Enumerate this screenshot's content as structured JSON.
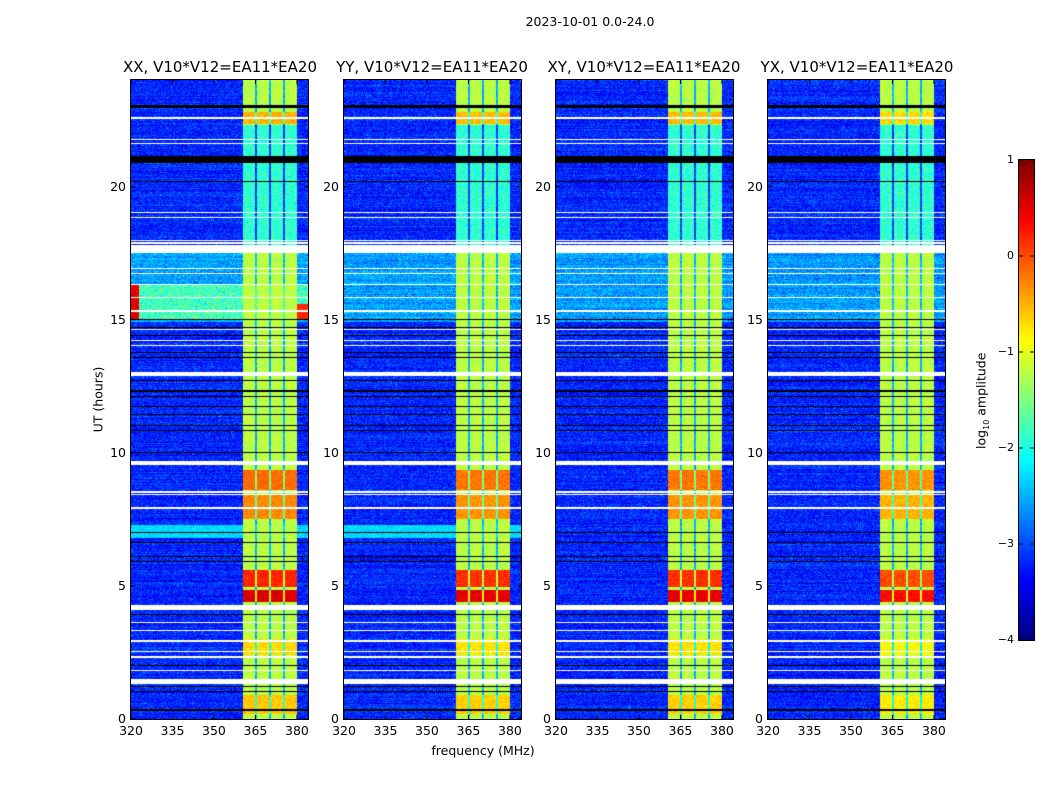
{
  "chart_data": {
    "type": "heatmap",
    "title": "2023-10-01 0.0-24.0",
    "xlabel": "frequency (MHz)",
    "ylabel": "UT (hours)",
    "xlim": [
      320,
      384
    ],
    "ylim": [
      0,
      24
    ],
    "xticks": [
      320,
      335,
      350,
      365,
      380
    ],
    "xtick_labels": [
      "320",
      "335",
      "350",
      "365",
      "380"
    ],
    "yticks": [
      0,
      5,
      10,
      15,
      20
    ],
    "ytick_labels": [
      "0",
      "5",
      "10",
      "15",
      "20"
    ],
    "panels": [
      {
        "title": "XX, V10*V12=EA11*EA20",
        "burst_offset": 0.0,
        "rfi": true,
        "light_rows": true
      },
      {
        "title": "YY, V10*V12=EA11*EA20",
        "burst_offset": -0.05,
        "rfi": false,
        "light_rows": true
      },
      {
        "title": "XY, V10*V12=EA11*EA20",
        "burst_offset": -0.05,
        "rfi": false,
        "light_rows": false
      },
      {
        "title": "YX, V10*V12=EA11*EA20",
        "burst_offset": -0.2,
        "rfi": false,
        "light_rows": false
      }
    ],
    "colorbar": {
      "label_prefix": "log",
      "label_sub": "10",
      "label_suffix": " amplitude",
      "colormap": "jet",
      "range": [
        -4,
        1
      ],
      "ticks": [
        1,
        0,
        -1,
        -2,
        -3,
        -4
      ],
      "tick_labels": [
        "1",
        "0",
        "−1",
        "−2",
        "−3",
        "−4"
      ]
    },
    "background_log_amplitude": -3.2,
    "signal_band_mhz": [
      360.5,
      380.0
    ],
    "signal_band_log_amplitude": -1.2,
    "subband_gaps_mhz": [
      365.2,
      370.3,
      375.4
    ],
    "bursts_hours": [
      {
        "t": [
          4.4,
          4.85
        ],
        "level": 0.55
      },
      {
        "t": [
          4.95,
          5.6
        ],
        "level": 0.2
      },
      {
        "t": [
          7.5,
          8.4
        ],
        "level": -0.3
      },
      {
        "t": [
          8.6,
          9.35
        ],
        "level": -0.15
      },
      {
        "t": [
          22.35,
          22.8
        ],
        "level": -0.5
      },
      {
        "t": [
          2.4,
          3.0
        ],
        "level": -0.7
      },
      {
        "t": [
          0.2,
          0.9
        ],
        "level": -0.6
      }
    ],
    "flagged_hours": [
      [
        17.5,
        17.8
      ],
      [
        12.9,
        13.05
      ],
      [
        9.55,
        9.7
      ],
      [
        4.1,
        4.3
      ],
      [
        1.3,
        1.5
      ],
      [
        22.55,
        22.6
      ],
      [
        21.75,
        21.8
      ],
      [
        21.6,
        21.65
      ],
      [
        19.0,
        19.05
      ],
      [
        18.8,
        18.85
      ],
      [
        17.95,
        18.0
      ],
      [
        17.85,
        17.9
      ],
      [
        16.9,
        16.95
      ],
      [
        16.7,
        16.75
      ],
      [
        16.3,
        16.35
      ],
      [
        15.8,
        15.85
      ],
      [
        15.3,
        15.35
      ],
      [
        14.6,
        14.65
      ],
      [
        14.2,
        14.25
      ],
      [
        14.0,
        14.05
      ],
      [
        8.5,
        8.55
      ],
      [
        8.4,
        8.45
      ],
      [
        7.9,
        7.95
      ],
      [
        3.6,
        3.65
      ],
      [
        3.3,
        3.35
      ],
      [
        2.9,
        2.95
      ],
      [
        2.5,
        2.55
      ],
      [
        2.3,
        2.35
      ],
      [
        1.8,
        1.85
      ]
    ],
    "dropout_hours": [
      [
        22.95,
        23.05
      ],
      [
        20.9,
        21.15
      ],
      [
        20.18,
        20.22
      ],
      [
        14.98,
        15.03
      ],
      [
        14.7,
        14.74
      ],
      [
        14.4,
        14.44
      ],
      [
        13.75,
        13.8
      ],
      [
        13.55,
        13.6
      ],
      [
        12.7,
        12.74
      ],
      [
        12.3,
        12.34
      ],
      [
        12.1,
        12.14
      ],
      [
        11.7,
        11.74
      ],
      [
        11.4,
        11.44
      ],
      [
        11.0,
        11.05
      ],
      [
        10.8,
        10.84
      ],
      [
        10.0,
        10.04
      ],
      [
        7.0,
        7.04
      ],
      [
        6.6,
        6.64
      ],
      [
        6.1,
        6.14
      ],
      [
        5.9,
        5.94
      ],
      [
        3.9,
        3.94
      ],
      [
        2.0,
        2.04
      ],
      [
        1.2,
        1.24
      ],
      [
        1.0,
        1.04
      ],
      [
        0.3,
        0.36
      ]
    ],
    "rfi_hours": [
      15.0,
      16.3
    ],
    "light_rows_hours": [
      6.8,
      7.3
    ]
  }
}
